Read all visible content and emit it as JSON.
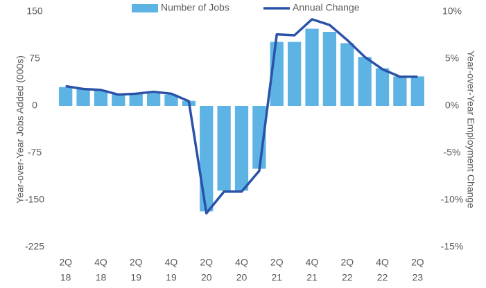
{
  "chart_data": {
    "type": "bar_line",
    "y_label": "Year-over-Year Jobs Added (000s)",
    "y2_label": "Year-over-Year Employment Change",
    "categories": [
      [
        "2Q",
        "18"
      ],
      null,
      [
        "4Q",
        "18"
      ],
      null,
      [
        "2Q",
        "19"
      ],
      null,
      [
        "4Q",
        "19"
      ],
      null,
      [
        "2Q",
        "20"
      ],
      null,
      [
        "4Q",
        "20"
      ],
      null,
      [
        "2Q",
        "21"
      ],
      null,
      [
        "4Q",
        "21"
      ],
      null,
      [
        "2Q",
        "22"
      ],
      null,
      [
        "4Q",
        "22"
      ],
      null,
      [
        "2Q",
        "23"
      ]
    ],
    "series": [
      {
        "name": "Number of Jobs",
        "type": "bar",
        "color": "#5db3e4",
        "values": [
          30,
          27,
          25,
          20,
          20,
          20,
          18,
          8,
          -168,
          -135,
          -135,
          -100,
          102,
          102,
          123,
          118,
          100,
          78,
          60,
          47,
          47
        ]
      },
      {
        "name": "Annual Change",
        "type": "line",
        "axis": "y2",
        "color": "#2a52a8",
        "values": [
          2.1,
          1.8,
          1.7,
          1.2,
          1.3,
          1.5,
          1.3,
          0.5,
          -11.4,
          -9.1,
          -9.1,
          -6.9,
          7.6,
          7.5,
          9.2,
          8.6,
          7.0,
          5.2,
          3.9,
          3.1,
          3.1
        ]
      }
    ],
    "ylim": [
      -225,
      150
    ],
    "yticks": [
      150,
      75,
      0,
      -75,
      -150,
      -225
    ],
    "y2lim": [
      -15,
      10
    ],
    "y2ticks": [
      {
        "value": 10,
        "label": "10%"
      },
      {
        "value": 5,
        "label": "5%"
      },
      {
        "value": 0,
        "label": "0%"
      },
      {
        "value": -5,
        "label": "-5%"
      },
      {
        "value": -10,
        "label": "-10%"
      },
      {
        "value": -15,
        "label": "-15%"
      }
    ]
  }
}
